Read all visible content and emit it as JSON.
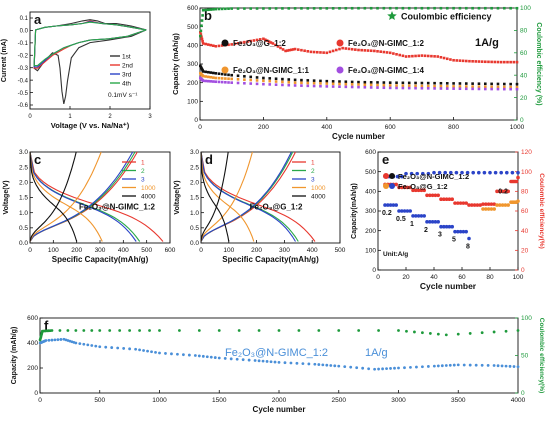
{
  "chart_data": [
    {
      "id": "a",
      "type": "line",
      "panel_letter": "a",
      "xlabel": "Voltage (V vs. Na/Na⁺)",
      "ylabel": "Current (mA)",
      "xlim": [
        -0.1,
        3.1
      ],
      "ylim": [
        -0.62,
        0.14
      ],
      "xticks": [
        "0",
        "1",
        "2",
        "3"
      ],
      "yticks": [
        "0.1",
        "0.0",
        "-0.1",
        "-0.2",
        "-0.3",
        "-0.4",
        "-0.5",
        "-0.6"
      ],
      "annotation": "0.1mV s⁻¹",
      "legend_position": "right",
      "series": [
        {
          "name": "1st",
          "color": "#333333",
          "x": [
            3.0,
            2.6,
            2.0,
            1.5,
            1.2,
            1.0,
            0.9,
            0.85,
            0.8,
            0.75,
            0.7,
            0.65,
            0.5,
            0.3,
            0.1,
            0.01,
            0.05,
            0.3,
            0.6,
            1.0,
            1.3,
            1.5,
            1.7,
            1.9,
            2.2,
            2.6,
            3.0
          ],
          "y": [
            0.0,
            -0.05,
            -0.08,
            -0.1,
            -0.14,
            -0.22,
            -0.4,
            -0.52,
            -0.58,
            -0.48,
            -0.3,
            -0.2,
            -0.18,
            -0.24,
            -0.32,
            -0.3,
            0.0,
            0.02,
            0.03,
            0.05,
            0.07,
            0.08,
            0.07,
            0.05,
            0.05,
            0.03,
            0.0
          ]
        },
        {
          "name": "2nd",
          "color": "#e8382f",
          "x": [
            3.0,
            2.5,
            2.0,
            1.5,
            1.2,
            1.0,
            0.8,
            0.5,
            0.3,
            0.1,
            0.01,
            0.05,
            0.3,
            0.6,
            1.0,
            1.3,
            1.5,
            1.8,
            2.2,
            2.6,
            3.0
          ],
          "y": [
            0.0,
            -0.05,
            -0.07,
            -0.08,
            -0.1,
            -0.12,
            -0.15,
            -0.2,
            -0.25,
            -0.3,
            -0.3,
            0.0,
            0.02,
            0.03,
            0.04,
            0.05,
            0.07,
            0.05,
            0.04,
            0.02,
            0.0
          ]
        },
        {
          "name": "3rd",
          "color": "#2b44c8",
          "x": [
            3.0,
            2.5,
            2.0,
            1.5,
            1.2,
            1.0,
            0.8,
            0.5,
            0.3,
            0.1,
            0.01,
            0.05,
            0.3,
            0.6,
            1.0,
            1.3,
            1.5,
            1.8,
            2.2,
            2.6,
            3.0
          ],
          "y": [
            0.0,
            -0.05,
            -0.07,
            -0.08,
            -0.1,
            -0.12,
            -0.14,
            -0.19,
            -0.24,
            -0.29,
            -0.29,
            0.0,
            0.02,
            0.03,
            0.04,
            0.05,
            0.065,
            0.05,
            0.04,
            0.02,
            0.0
          ]
        },
        {
          "name": "4th",
          "color": "#2aa84a",
          "x": [
            3.0,
            2.5,
            2.0,
            1.5,
            1.2,
            1.0,
            0.8,
            0.5,
            0.3,
            0.1,
            0.01,
            0.05,
            0.3,
            0.6,
            1.0,
            1.3,
            1.5,
            1.8,
            2.2,
            2.6,
            3.0
          ],
          "y": [
            0.0,
            -0.05,
            -0.07,
            -0.08,
            -0.1,
            -0.12,
            -0.14,
            -0.19,
            -0.23,
            -0.28,
            -0.28,
            0.0,
            0.02,
            0.03,
            0.04,
            0.05,
            0.06,
            0.05,
            0.04,
            0.02,
            0.0
          ]
        }
      ]
    },
    {
      "id": "b",
      "type": "scatter",
      "panel_letter": "b",
      "xlabel": "Cycle number",
      "ylabel": "Capacity (mAh/g)",
      "ylabel_right": "Coulombic efficiency (%)",
      "xlim": [
        0,
        1000
      ],
      "ylim": [
        0,
        600
      ],
      "ylim_right": [
        0,
        100
      ],
      "xticks": [
        "0",
        "200",
        "400",
        "600",
        "800",
        "1000"
      ],
      "yticks": [
        "0",
        "100",
        "200",
        "300",
        "400",
        "500",
        "600"
      ],
      "yticks_right": [
        "0",
        "20",
        "40",
        "60",
        "80",
        "100"
      ],
      "annotation": "1A/g",
      "legend_top": "Coulombic efficiency",
      "series": [
        {
          "name": "Fe₂O₃@G_1:2",
          "color": "#111111",
          "axis": "left",
          "x": [
            1,
            10,
            50,
            100,
            200,
            300,
            400,
            500,
            600,
            700,
            800,
            900,
            1000
          ],
          "y": [
            290,
            260,
            250,
            240,
            225,
            215,
            208,
            203,
            200,
            198,
            196,
            194,
            192
          ]
        },
        {
          "name": "Fe₂O₃@N-GIMC_1:2",
          "color": "#e8382f",
          "axis": "left",
          "x": [
            1,
            10,
            50,
            100,
            150,
            200,
            230,
            270,
            300,
            350,
            400,
            450,
            500,
            550,
            600,
            650,
            700,
            750,
            800,
            850,
            900,
            950,
            1000
          ],
          "y": [
            470,
            410,
            395,
            405,
            420,
            435,
            410,
            370,
            380,
            365,
            360,
            385,
            375,
            370,
            360,
            340,
            345,
            340,
            320,
            315,
            312,
            310,
            310
          ]
        },
        {
          "name": "Fe₂O₃@N-GIMC_1:1",
          "color": "#f0962e",
          "axis": "left",
          "x": [
            1,
            10,
            50,
            100,
            200,
            300,
            400,
            500,
            600,
            700,
            800,
            900,
            1000
          ],
          "y": [
            250,
            235,
            225,
            220,
            210,
            200,
            195,
            190,
            185,
            182,
            180,
            178,
            176
          ]
        },
        {
          "name": "Fe₂O₃@N-GIMC_1:4",
          "color": "#a24ee0",
          "axis": "left",
          "x": [
            1,
            10,
            50,
            100,
            200,
            300,
            400,
            500,
            600,
            700,
            800,
            900,
            1000
          ],
          "y": [
            225,
            210,
            205,
            200,
            192,
            185,
            180,
            176,
            172,
            170,
            168,
            166,
            165
          ]
        },
        {
          "name": "Coulombic efficiency",
          "color": "#1e9a3c",
          "axis": "right",
          "x": [
            1,
            10,
            50,
            100,
            200,
            300,
            400,
            500,
            600,
            700,
            800,
            900,
            1000
          ],
          "y": [
            75,
            98,
            99,
            99.5,
            99.6,
            99.7,
            99.7,
            99.8,
            99.8,
            99.8,
            99.8,
            99.8,
            99.8
          ]
        }
      ]
    },
    {
      "id": "c",
      "type": "line",
      "panel_letter": "c",
      "xlabel": "Specific Capacity(mAh/g)",
      "ylabel": "Voltage(V)",
      "xlim": [
        0,
        600
      ],
      "ylim": [
        0,
        3.0
      ],
      "xticks": [
        "0",
        "100",
        "200",
        "300",
        "400",
        "500",
        "600"
      ],
      "yticks": [
        "0.0",
        "0.5",
        "1.0",
        "1.5",
        "2.0",
        "2.5",
        "3.0"
      ],
      "annotation": "Fe₂O₃@N-GIMC_1:2",
      "series": [
        {
          "name": "1",
          "color": "#e8382f",
          "discharge_end": 570,
          "charge_end": 460
        },
        {
          "name": "2",
          "color": "#2aa84a",
          "discharge_end": 470,
          "charge_end": 450
        },
        {
          "name": "3",
          "color": "#2b44c8",
          "discharge_end": 455,
          "charge_end": 440
        },
        {
          "name": "1000",
          "color": "#f0962e",
          "discharge_end": 310,
          "charge_end": 305
        },
        {
          "name": "4000",
          "color": "#111111",
          "discharge_end": 200,
          "charge_end": 198
        }
      ]
    },
    {
      "id": "d",
      "type": "line",
      "panel_letter": "d",
      "xlabel": "Specific Capacity(mAh/g)",
      "ylabel": "Voltage(V)",
      "xlim": [
        0,
        500
      ],
      "ylim": [
        0,
        3.0
      ],
      "xticks": [
        "0",
        "100",
        "200",
        "300",
        "400",
        "500"
      ],
      "yticks": [
        "0.0",
        "0.5",
        "1.0",
        "1.5",
        "2.0",
        "2.5",
        "3.0"
      ],
      "annotation": "Fe₂O₃@G_1:2",
      "series": [
        {
          "name": "1",
          "color": "#e8382f",
          "discharge_end": 410,
          "charge_end": 340
        },
        {
          "name": "2",
          "color": "#2aa84a",
          "discharge_end": 350,
          "charge_end": 330
        },
        {
          "name": "3",
          "color": "#2b44c8",
          "discharge_end": 340,
          "charge_end": 325
        },
        {
          "name": "1000",
          "color": "#f0962e",
          "discharge_end": 190,
          "charge_end": 185
        },
        {
          "name": "4000",
          "color": "#111111",
          "discharge_end": 100,
          "charge_end": 98
        }
      ]
    },
    {
      "id": "e",
      "type": "scatter",
      "panel_letter": "e",
      "xlabel": "Cycle number",
      "ylabel": "Capacity(mAh/g)",
      "ylabel_right": "Coulombic efficiency(%)",
      "xlim": [
        0,
        100
      ],
      "ylim": [
        0,
        600
      ],
      "ylim_right": [
        0,
        120
      ],
      "xticks": [
        "0",
        "20",
        "40",
        "60",
        "80",
        "100"
      ],
      "yticks": [
        "0",
        "100",
        "200",
        "300",
        "400",
        "500",
        "600"
      ],
      "yticks_right": [
        "0",
        "20",
        "40",
        "60",
        "80",
        "100",
        "120"
      ],
      "rate_labels": [
        "0.2",
        "0.5",
        "1",
        "2",
        "3",
        "5",
        "8",
        "0.2"
      ],
      "unit_label": "Unit:A/g",
      "series": [
        {
          "name": "Fe₂O₃@N-GIMC_1:2",
          "color": "#e8382f",
          "x": [
            5,
            15,
            25,
            35,
            45,
            55,
            65,
            75,
            85,
            95,
            100
          ],
          "y": [
            435,
            420,
            405,
            380,
            360,
            340,
            330,
            335,
            400,
            450,
            470
          ]
        },
        {
          "name": "Fe₂O₃@G_1:2",
          "color": "#f0962e",
          "x": [
            75,
            85,
            95,
            100
          ],
          "y": [
            310,
            330,
            345,
            350
          ]
        },
        {
          "name": "Fe₂O₃@G_1:2 (rate)",
          "color": "#2b44c8",
          "x": [
            5,
            15,
            25,
            35,
            45,
            55,
            65
          ],
          "y": [
            330,
            300,
            275,
            245,
            220,
            195,
            160
          ]
        },
        {
          "name": "Coulombic efficiency",
          "color": "#2b44c8",
          "axis": "right",
          "x": [
            5,
            20,
            40,
            60,
            80,
            100
          ],
          "y": [
            95,
            98,
            99,
            99,
            99,
            99
          ]
        }
      ]
    },
    {
      "id": "f",
      "type": "scatter",
      "panel_letter": "f",
      "xlabel": "Cycle number",
      "ylabel": "Capacity (mAh/g)",
      "ylabel_right": "Coulombic efficiency(%)",
      "xlim": [
        0,
        4000
      ],
      "ylim": [
        0,
        600
      ],
      "ylim_right": [
        0,
        120
      ],
      "xticks": [
        "0",
        "500",
        "1000",
        "1500",
        "2000",
        "2500",
        "3000",
        "3500",
        "4000"
      ],
      "yticks": [
        "0",
        "200",
        "400",
        "600"
      ],
      "yticks_right": [
        "0",
        "50",
        "100"
      ],
      "annotation": "Fe₂O₃@N-GIMC_1:2",
      "annotation_rate": "1A/g",
      "series": [
        {
          "name": "Capacity",
          "color": "#4a8fd8",
          "x": [
            1,
            50,
            200,
            300,
            500,
            800,
            1000,
            1300,
            1500,
            1800,
            2000,
            2300,
            2500,
            2800,
            3000,
            3300,
            3500,
            3800,
            4000
          ],
          "y": [
            400,
            420,
            430,
            400,
            370,
            350,
            320,
            300,
            280,
            260,
            245,
            230,
            215,
            190,
            200,
            215,
            225,
            220,
            210
          ]
        },
        {
          "name": "Coulombic efficiency",
          "color": "#1e9a3c",
          "axis": "right",
          "x": [
            1,
            20,
            100,
            500,
            1000,
            2000,
            3000,
            3400,
            4000
          ],
          "y": [
            85,
            99,
            100,
            100,
            100,
            100,
            100,
            93,
            100
          ]
        }
      ]
    }
  ]
}
